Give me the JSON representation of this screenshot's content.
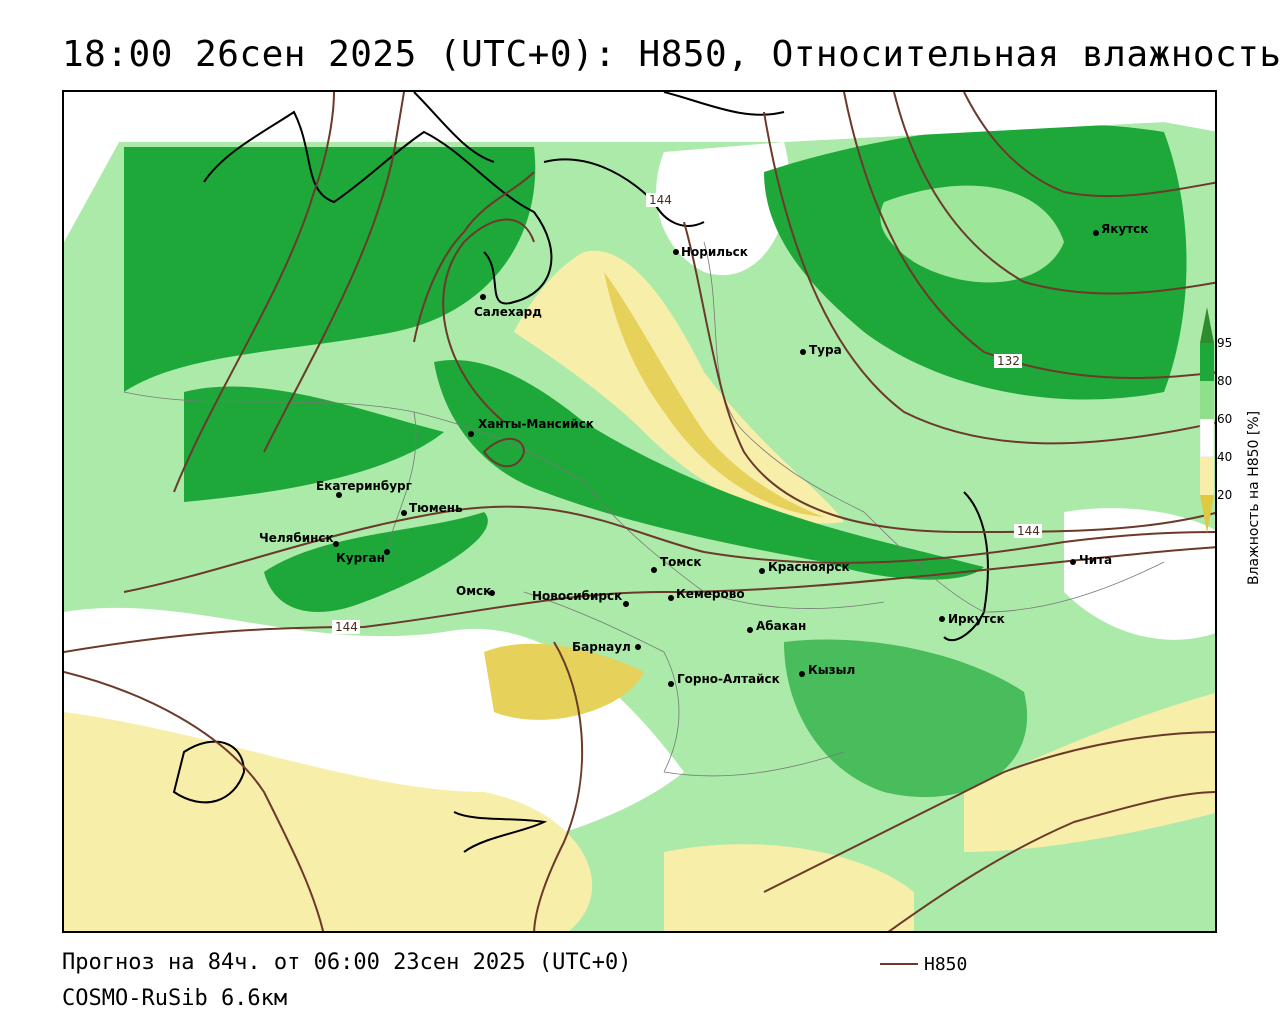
{
  "title": "18:00 26сен 2025 (UTC+0): H850, Относительная влажность",
  "footer": {
    "forecast": "Прогноз на 84ч. от 06:00 23сен 2025 (UTC+0)",
    "model": "COSMO-RuSib 6.6км",
    "line_legend": "H850"
  },
  "colorbar": {
    "title": "Влажность на H850 [%]",
    "ticks": [
      "95",
      "80",
      "60",
      "40",
      "20"
    ],
    "colors": {
      "above95": "#2e8b2e",
      "80_95": "#1fa83a",
      "60_80": "#8fe08a",
      "40_60": "#ffffff",
      "20_40": "#f7eeaa",
      "below20": "#e0c840"
    }
  },
  "contour_labels": [
    "144",
    "144",
    "144",
    "132"
  ],
  "cities": [
    {
      "name": "Норильск"
    },
    {
      "name": "Якутск"
    },
    {
      "name": "Салехард"
    },
    {
      "name": "Тура"
    },
    {
      "name": "Ханты-Мансийск"
    },
    {
      "name": "Екатеринбург"
    },
    {
      "name": "Тюмень"
    },
    {
      "name": "Челябинск"
    },
    {
      "name": "Курган"
    },
    {
      "name": "Омск"
    },
    {
      "name": "Томск"
    },
    {
      "name": "Новосибирск"
    },
    {
      "name": "Кемерово"
    },
    {
      "name": "Красноярск"
    },
    {
      "name": "Абакан"
    },
    {
      "name": "Барнаул"
    },
    {
      "name": "Горно-Алтайск"
    },
    {
      "name": "Кызыл"
    },
    {
      "name": "Иркутск"
    },
    {
      "name": "Чита"
    }
  ]
}
